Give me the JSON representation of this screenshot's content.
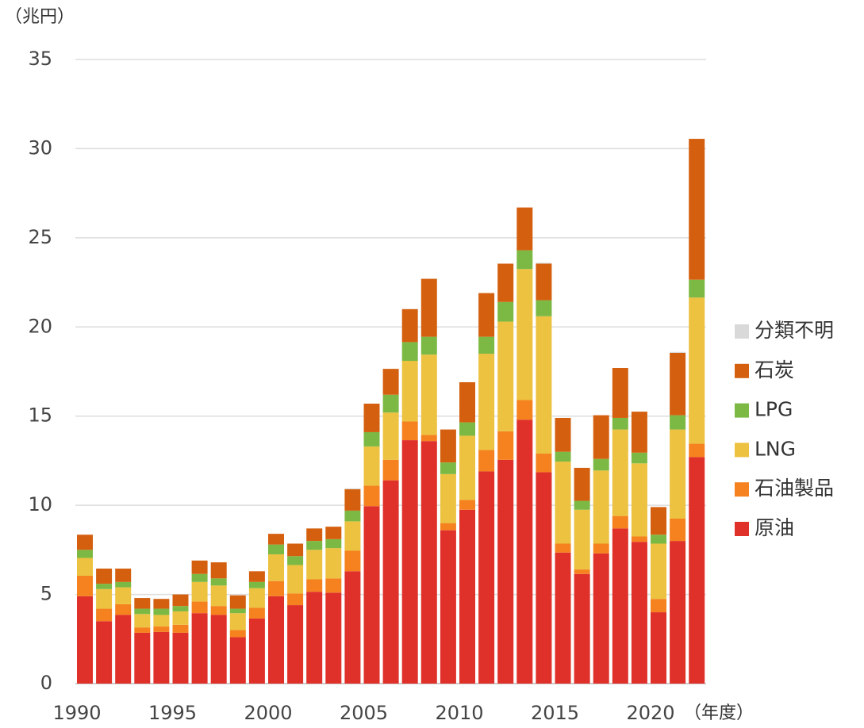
{
  "chart_data": {
    "type": "stacked_bar",
    "y_unit": "（兆円）",
    "x_unit": "（年度）",
    "categories": [
      "1990",
      null,
      null,
      null,
      null,
      "1995",
      null,
      null,
      null,
      null,
      "2000",
      null,
      null,
      null,
      null,
      "2005",
      null,
      null,
      null,
      null,
      "2010",
      null,
      null,
      null,
      null,
      "2015",
      null,
      null,
      null,
      null,
      "2020",
      null,
      null
    ],
    "ylim": [
      0,
      35
    ],
    "yticks": [
      0,
      5,
      10,
      15,
      20,
      25,
      30,
      35
    ],
    "grid": true,
    "legend": "right",
    "series": [
      {
        "name": "原油",
        "color": "#e0302a",
        "values": [
          4.9,
          3.5,
          3.85,
          2.85,
          2.9,
          2.85,
          3.95,
          3.85,
          2.6,
          3.65,
          4.9,
          4.4,
          5.15,
          5.1,
          6.3,
          9.95,
          11.4,
          13.65,
          13.6,
          8.6,
          9.75,
          11.9,
          12.55,
          14.8,
          11.85,
          7.35,
          6.15,
          7.3,
          8.7,
          7.95,
          4.0,
          8.0,
          12.7
        ]
      },
      {
        "name": "石油製品",
        "color": "#f5821f",
        "values": [
          1.15,
          0.7,
          0.6,
          0.3,
          0.3,
          0.45,
          0.65,
          0.5,
          0.4,
          0.6,
          0.85,
          0.65,
          0.7,
          0.8,
          1.15,
          1.15,
          1.15,
          1.05,
          0.35,
          0.4,
          0.55,
          1.2,
          1.6,
          1.1,
          1.05,
          0.5,
          0.25,
          0.55,
          0.7,
          0.3,
          0.75,
          1.25,
          0.75
        ]
      },
      {
        "name": "LNG",
        "color": "#ecc240",
        "values": [
          1.0,
          1.1,
          0.95,
          0.75,
          0.65,
          0.75,
          1.1,
          1.15,
          0.95,
          1.1,
          1.5,
          1.6,
          1.65,
          1.7,
          1.65,
          2.2,
          2.65,
          3.4,
          4.5,
          2.75,
          3.6,
          5.4,
          6.15,
          7.35,
          7.7,
          4.6,
          3.35,
          4.1,
          4.85,
          4.1,
          3.1,
          5.0,
          8.2
        ]
      },
      {
        "name": "LPG",
        "color": "#7cb944",
        "values": [
          0.45,
          0.3,
          0.3,
          0.3,
          0.35,
          0.3,
          0.45,
          0.4,
          0.25,
          0.35,
          0.55,
          0.5,
          0.5,
          0.5,
          0.6,
          0.8,
          1.0,
          1.05,
          1.0,
          0.65,
          0.75,
          0.95,
          1.1,
          1.05,
          0.9,
          0.55,
          0.5,
          0.65,
          0.65,
          0.6,
          0.5,
          0.8,
          1.0
        ]
      },
      {
        "name": "石炭",
        "color": "#d4600f",
        "values": [
          0.85,
          0.85,
          0.75,
          0.6,
          0.55,
          0.65,
          0.75,
          0.9,
          0.75,
          0.6,
          0.6,
          0.7,
          0.7,
          0.7,
          1.2,
          1.6,
          1.45,
          1.85,
          3.25,
          1.85,
          2.25,
          2.45,
          2.15,
          2.4,
          2.05,
          1.9,
          1.85,
          2.45,
          2.8,
          2.3,
          1.55,
          3.5,
          7.9
        ]
      },
      {
        "name": "分類不明",
        "color": "#d9d9d9",
        "values": [
          0,
          0,
          0,
          0,
          0,
          0,
          0,
          0,
          0,
          0,
          0,
          0,
          0,
          0,
          0.05,
          0,
          0,
          0,
          0,
          0,
          0,
          0,
          0,
          0,
          0.05,
          0,
          0,
          0,
          0,
          0,
          0,
          0.05,
          0
        ]
      }
    ]
  }
}
